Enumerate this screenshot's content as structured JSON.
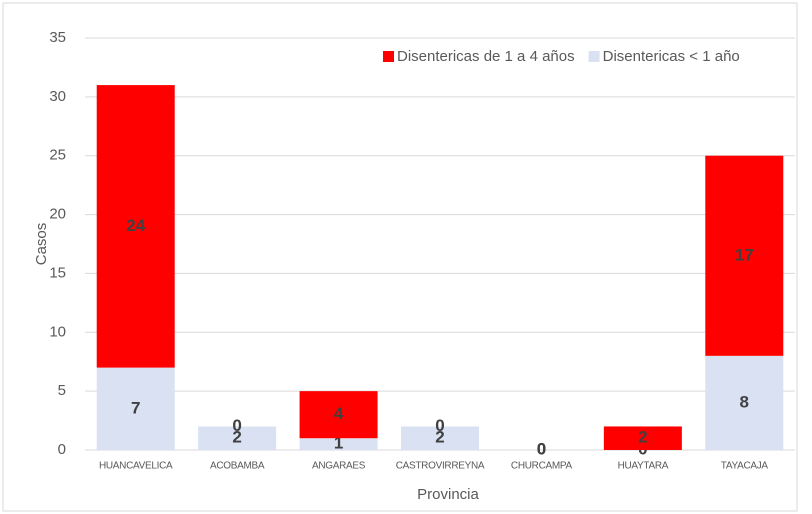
{
  "chart_data": {
    "type": "stacked_bar",
    "categories": [
      "HUANCAVELICA",
      "ACOBAMBA",
      "ANGARAES",
      "CASTROVIRREYNA",
      "CHURCAMPA",
      "HUAYTARA",
      "TAYACAJA"
    ],
    "series": [
      {
        "name": "Disentericas < 1 año",
        "color": "#d9e1f2",
        "values": [
          7,
          2,
          1,
          2,
          0,
          0,
          8
        ]
      },
      {
        "name": "Disentericas de 1 a 4 años",
        "color": "#ff0000",
        "values": [
          24,
          0,
          4,
          0,
          0,
          2,
          17
        ]
      }
    ],
    "legend_order": [
      1,
      0
    ],
    "x_label": "Provincia",
    "y_label": "Casos",
    "ylim": [
      0,
      35
    ],
    "yticks": [
      0,
      5,
      10,
      15,
      20,
      25,
      30,
      35
    ],
    "grid": true,
    "legend": "top-right"
  }
}
